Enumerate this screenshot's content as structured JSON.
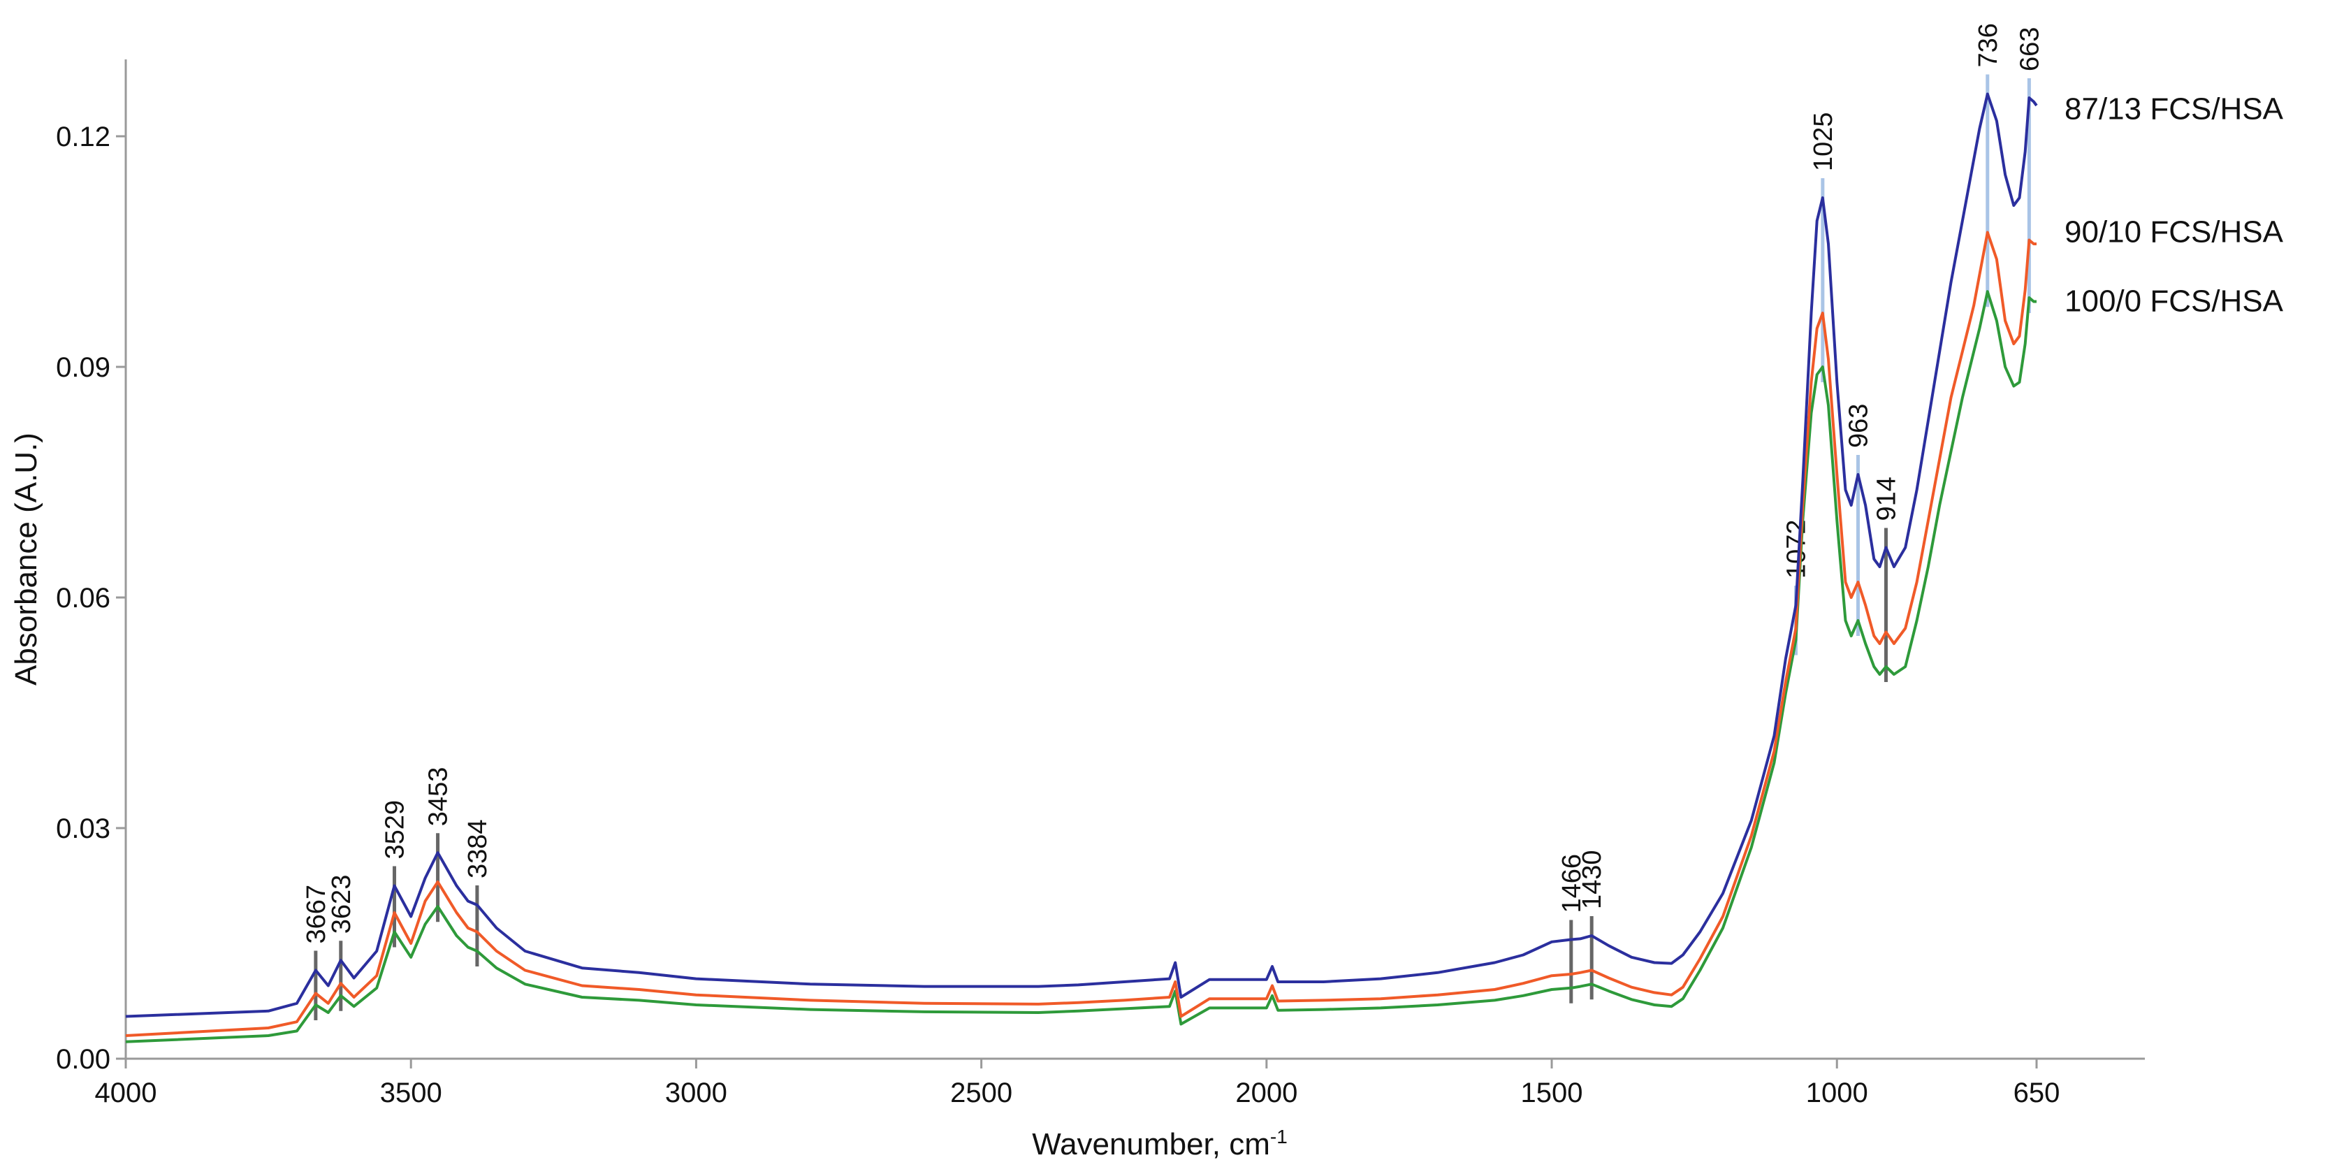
{
  "chart_data": {
    "type": "line",
    "title": "",
    "xlabel": "Wavenumber, cm",
    "xlabel_superscript": "-1",
    "ylabel": "Absorbance (A.U.)",
    "xlim": [
      4000,
      650
    ],
    "ylim": [
      0,
      0.13
    ],
    "x_reversed": true,
    "x_ticks": [
      {
        "value": 4000,
        "label": "4000"
      },
      {
        "value": 3500,
        "label": "3500"
      },
      {
        "value": 3000,
        "label": "3000"
      },
      {
        "value": 2500,
        "label": "2500"
      },
      {
        "value": 2000,
        "label": "2000"
      },
      {
        "value": 1500,
        "label": "1500"
      },
      {
        "value": 1000,
        "label": "1000"
      },
      {
        "value": 650,
        "label": "650"
      }
    ],
    "y_ticks": [
      {
        "value": 0.0,
        "label": "0.00"
      },
      {
        "value": 0.03,
        "label": "0.03"
      },
      {
        "value": 0.06,
        "label": "0.06"
      },
      {
        "value": 0.09,
        "label": "0.09"
      },
      {
        "value": 0.12,
        "label": "0.12"
      }
    ],
    "grid": false,
    "legend": "series labels at right end of lines",
    "series": [
      {
        "name": "87/13 FCS/HSA",
        "color": "#2b2f9e",
        "x": [
          4000,
          3750,
          3700,
          3667,
          3645,
          3623,
          3600,
          3560,
          3529,
          3500,
          3475,
          3453,
          3420,
          3400,
          3384,
          3350,
          3300,
          3200,
          3100,
          3000,
          2800,
          2600,
          2400,
          2330,
          2250,
          2170,
          2160,
          2150,
          2100,
          2000,
          1990,
          1980,
          1900,
          1800,
          1700,
          1600,
          1550,
          1500,
          1466,
          1450,
          1430,
          1400,
          1360,
          1320,
          1290,
          1270,
          1240,
          1200,
          1150,
          1110,
          1090,
          1072,
          1060,
          1045,
          1035,
          1025,
          1015,
          1000,
          985,
          975,
          963,
          950,
          935,
          925,
          914,
          900,
          880,
          860,
          840,
          820,
          800,
          780,
          760,
          750,
          736,
          720,
          705,
          690,
          680,
          670,
          663,
          655,
          650
        ],
        "y": [
          0.0055,
          0.0062,
          0.0072,
          0.0115,
          0.0095,
          0.0128,
          0.0105,
          0.014,
          0.0225,
          0.0185,
          0.0235,
          0.0268,
          0.0225,
          0.0205,
          0.02,
          0.017,
          0.014,
          0.0118,
          0.0112,
          0.0104,
          0.0097,
          0.0094,
          0.0094,
          0.0096,
          0.01,
          0.0104,
          0.0125,
          0.008,
          0.0103,
          0.0103,
          0.012,
          0.01,
          0.01,
          0.0104,
          0.0112,
          0.0125,
          0.0135,
          0.0152,
          0.0155,
          0.0156,
          0.016,
          0.0147,
          0.0132,
          0.0125,
          0.0124,
          0.0135,
          0.0165,
          0.0215,
          0.031,
          0.042,
          0.052,
          0.059,
          0.075,
          0.097,
          0.109,
          0.112,
          0.106,
          0.088,
          0.074,
          0.072,
          0.076,
          0.072,
          0.065,
          0.064,
          0.0665,
          0.064,
          0.0665,
          0.074,
          0.083,
          0.092,
          0.101,
          0.109,
          0.117,
          0.121,
          0.1255,
          0.122,
          0.115,
          0.111,
          0.112,
          0.118,
          0.125,
          0.1245,
          0.124
        ]
      },
      {
        "name": "90/10 FCS/HSA",
        "color": "#f05a28",
        "x": [
          4000,
          3750,
          3700,
          3667,
          3645,
          3623,
          3600,
          3560,
          3529,
          3500,
          3475,
          3453,
          3420,
          3400,
          3384,
          3350,
          3300,
          3200,
          3100,
          3000,
          2800,
          2600,
          2400,
          2330,
          2250,
          2170,
          2160,
          2150,
          2100,
          2000,
          1990,
          1980,
          1900,
          1800,
          1700,
          1600,
          1550,
          1500,
          1466,
          1450,
          1430,
          1400,
          1360,
          1320,
          1290,
          1270,
          1240,
          1200,
          1150,
          1110,
          1090,
          1072,
          1060,
          1045,
          1035,
          1025,
          1015,
          1000,
          985,
          975,
          963,
          950,
          935,
          925,
          914,
          900,
          880,
          860,
          840,
          820,
          800,
          780,
          760,
          750,
          736,
          720,
          705,
          690,
          680,
          670,
          663,
          655,
          650
        ],
        "y": [
          0.003,
          0.004,
          0.0048,
          0.0085,
          0.0072,
          0.0098,
          0.008,
          0.0108,
          0.019,
          0.015,
          0.0205,
          0.023,
          0.019,
          0.017,
          0.0165,
          0.014,
          0.0115,
          0.0095,
          0.009,
          0.0083,
          0.0076,
          0.0072,
          0.0071,
          0.0073,
          0.0076,
          0.008,
          0.01,
          0.0055,
          0.0078,
          0.0078,
          0.0095,
          0.0075,
          0.0076,
          0.0078,
          0.0083,
          0.009,
          0.0098,
          0.0108,
          0.011,
          0.0112,
          0.0115,
          0.0105,
          0.0093,
          0.0086,
          0.0083,
          0.0093,
          0.013,
          0.0185,
          0.029,
          0.04,
          0.049,
          0.056,
          0.072,
          0.088,
          0.095,
          0.097,
          0.091,
          0.076,
          0.062,
          0.06,
          0.062,
          0.059,
          0.055,
          0.054,
          0.0555,
          0.054,
          0.056,
          0.062,
          0.07,
          0.078,
          0.086,
          0.092,
          0.098,
          0.102,
          0.1075,
          0.104,
          0.096,
          0.093,
          0.094,
          0.1,
          0.1065,
          0.106,
          0.106
        ]
      },
      {
        "name": "100/0 FCS/HSA",
        "color": "#2e9a3a",
        "x": [
          4000,
          3750,
          3700,
          3667,
          3645,
          3623,
          3600,
          3560,
          3529,
          3500,
          3475,
          3453,
          3420,
          3400,
          3384,
          3350,
          3300,
          3200,
          3100,
          3000,
          2800,
          2600,
          2400,
          2330,
          2250,
          2170,
          2160,
          2150,
          2100,
          2000,
          1990,
          1980,
          1900,
          1800,
          1700,
          1600,
          1550,
          1500,
          1466,
          1450,
          1430,
          1400,
          1360,
          1320,
          1290,
          1270,
          1240,
          1200,
          1150,
          1110,
          1090,
          1072,
          1060,
          1045,
          1035,
          1025,
          1015,
          1000,
          985,
          975,
          963,
          950,
          935,
          925,
          914,
          900,
          880,
          860,
          840,
          820,
          800,
          780,
          760,
          750,
          736,
          720,
          705,
          690,
          680,
          670,
          663,
          655,
          650
        ],
        "y": [
          0.0022,
          0.003,
          0.0036,
          0.007,
          0.006,
          0.0082,
          0.0068,
          0.0092,
          0.0165,
          0.0132,
          0.0175,
          0.0198,
          0.016,
          0.0145,
          0.014,
          0.0118,
          0.0097,
          0.008,
          0.0076,
          0.007,
          0.0064,
          0.0061,
          0.006,
          0.0062,
          0.0065,
          0.0068,
          0.0088,
          0.0045,
          0.0066,
          0.0066,
          0.0082,
          0.0063,
          0.0064,
          0.0066,
          0.007,
          0.0076,
          0.0082,
          0.009,
          0.0092,
          0.0094,
          0.0097,
          0.0088,
          0.0077,
          0.007,
          0.0068,
          0.0078,
          0.0115,
          0.017,
          0.0275,
          0.0385,
          0.0475,
          0.0545,
          0.07,
          0.084,
          0.089,
          0.09,
          0.085,
          0.07,
          0.057,
          0.055,
          0.057,
          0.054,
          0.051,
          0.05,
          0.051,
          0.05,
          0.051,
          0.057,
          0.064,
          0.072,
          0.079,
          0.086,
          0.092,
          0.095,
          0.0998,
          0.096,
          0.09,
          0.0875,
          0.088,
          0.093,
          0.099,
          0.0985,
          0.0985
        ]
      }
    ],
    "peak_markers": [
      {
        "label": "3667",
        "x": 3667,
        "color": "#666666"
      },
      {
        "label": "3623",
        "x": 3623,
        "color": "#666666"
      },
      {
        "label": "3529",
        "x": 3529,
        "color": "#666666"
      },
      {
        "label": "3453",
        "x": 3453,
        "color": "#666666"
      },
      {
        "label": "3384",
        "x": 3384,
        "color": "#666666"
      },
      {
        "label": "1466",
        "x": 1466,
        "color": "#666666"
      },
      {
        "label": "1430",
        "x": 1430,
        "color": "#666666"
      },
      {
        "label": "1072",
        "x": 1072,
        "color": "#a9c4e6"
      },
      {
        "label": "1025",
        "x": 1025,
        "color": "#a9c4e6"
      },
      {
        "label": "963",
        "x": 963,
        "color": "#a9c4e6"
      },
      {
        "label": "914",
        "x": 914,
        "color": "#666666"
      },
      {
        "label": "736",
        "x": 736,
        "color": "#a9c4e6"
      },
      {
        "label": "663",
        "x": 663,
        "color": "#a9c4e6"
      }
    ]
  }
}
